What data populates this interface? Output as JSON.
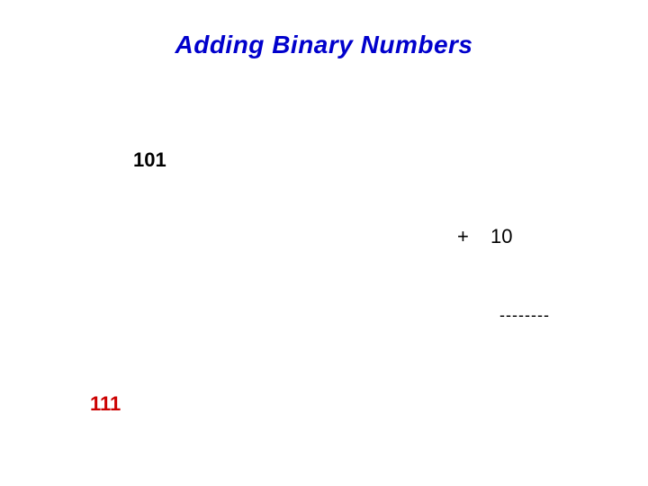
{
  "title": {
    "text": "Adding Binary Numbers",
    "color": "#0000cc",
    "fontsize": 28
  },
  "operand_a": {
    "text": "101",
    "color": "#000000",
    "fontsize": 22
  },
  "plus": {
    "text": "+",
    "color": "#000000",
    "fontsize": 22
  },
  "operand_b": {
    "text": "10",
    "color": "#000000",
    "fontsize": 22
  },
  "separator": {
    "text": "--------",
    "color": "#000000",
    "fontsize": 18
  },
  "result": {
    "text": "111",
    "color": "#cc0000",
    "fontsize": 22
  }
}
